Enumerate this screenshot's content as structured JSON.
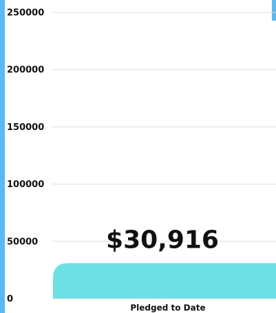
{
  "chart_data": {
    "type": "bar",
    "categories": [
      "Pledged to Date"
    ],
    "values": [
      30916
    ],
    "value_labels": [
      "$30,916"
    ],
    "color": "#6ee0e3",
    "ylim": [
      0,
      250000
    ],
    "yticks": [
      0,
      50000,
      100000,
      150000,
      200000,
      250000
    ],
    "grid": true
  }
}
